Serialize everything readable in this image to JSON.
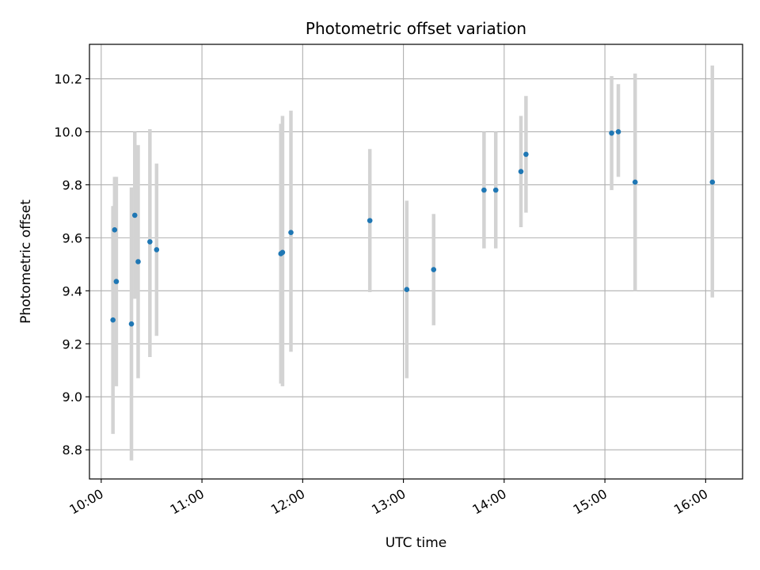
{
  "chart_data": {
    "type": "scatter",
    "title": "Photometric offset variation",
    "xlabel": "UTC time",
    "ylabel": "Photometric offset",
    "x_unit": "UTC time (HH:MM)",
    "xlim": [
      "09:53",
      "16:22"
    ],
    "ylim": [
      8.69,
      10.33
    ],
    "x_ticks": [
      "10:00",
      "11:00",
      "12:00",
      "13:00",
      "14:00",
      "15:00",
      "16:00"
    ],
    "y_ticks": [
      "8.8",
      "9.0",
      "9.2",
      "9.4",
      "9.6",
      "9.8",
      "10.0",
      "10.2"
    ],
    "grid": true,
    "marker_color": "#1f77b4",
    "errorbar_color": "#d3d3d3",
    "points": [
      {
        "x": "10:07",
        "y": 9.29,
        "ylow": 8.86,
        "yhigh": 9.72
      },
      {
        "x": "10:08",
        "y": 9.63,
        "ylow": 9.43,
        "yhigh": 9.83
      },
      {
        "x": "10:09",
        "y": 9.435,
        "ylow": 9.04,
        "yhigh": 9.83
      },
      {
        "x": "10:18",
        "y": 9.275,
        "ylow": 8.76,
        "yhigh": 9.79
      },
      {
        "x": "10:20",
        "y": 9.685,
        "ylow": 9.37,
        "yhigh": 10.0
      },
      {
        "x": "10:22",
        "y": 9.51,
        "ylow": 9.07,
        "yhigh": 9.95
      },
      {
        "x": "10:29",
        "y": 9.585,
        "ylow": 9.15,
        "yhigh": 10.01
      },
      {
        "x": "10:33",
        "y": 9.555,
        "ylow": 9.23,
        "yhigh": 9.88
      },
      {
        "x": "11:47",
        "y": 9.54,
        "ylow": 9.05,
        "yhigh": 10.03
      },
      {
        "x": "11:48",
        "y": 9.545,
        "ylow": 9.04,
        "yhigh": 10.06
      },
      {
        "x": "11:53",
        "y": 9.62,
        "ylow": 9.17,
        "yhigh": 10.08
      },
      {
        "x": "12:40",
        "y": 9.665,
        "ylow": 9.395,
        "yhigh": 9.935
      },
      {
        "x": "13:02",
        "y": 9.405,
        "ylow": 9.07,
        "yhigh": 9.74
      },
      {
        "x": "13:18",
        "y": 9.48,
        "ylow": 9.27,
        "yhigh": 9.69
      },
      {
        "x": "13:48",
        "y": 9.78,
        "ylow": 9.56,
        "yhigh": 10.0
      },
      {
        "x": "13:55",
        "y": 9.78,
        "ylow": 9.56,
        "yhigh": 10.0
      },
      {
        "x": "14:10",
        "y": 9.85,
        "ylow": 9.64,
        "yhigh": 10.06
      },
      {
        "x": "14:13",
        "y": 9.915,
        "ylow": 9.695,
        "yhigh": 10.135
      },
      {
        "x": "15:04",
        "y": 9.995,
        "ylow": 9.78,
        "yhigh": 10.21
      },
      {
        "x": "15:08",
        "y": 10.0,
        "ylow": 9.83,
        "yhigh": 10.18
      },
      {
        "x": "15:18",
        "y": 9.81,
        "ylow": 9.4,
        "yhigh": 10.22
      },
      {
        "x": "16:04",
        "y": 9.81,
        "ylow": 9.375,
        "yhigh": 10.25
      }
    ]
  }
}
